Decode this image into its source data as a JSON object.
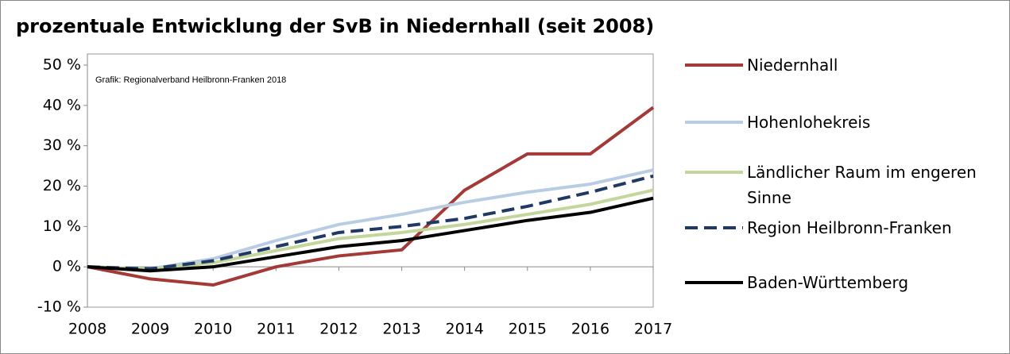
{
  "chart_data": {
    "type": "line",
    "title": "prozentuale Entwicklung der SvB in Niedernhall (seit 2008)",
    "annotation": "Grafik: Regionalverband Heilbronn-Franken 2018",
    "x": [
      2008,
      2009,
      2010,
      2011,
      2012,
      2013,
      2014,
      2015,
      2016,
      2017
    ],
    "xlim": [
      2008,
      2017
    ],
    "xticks": [
      2008,
      2009,
      2010,
      2011,
      2012,
      2013,
      2014,
      2015,
      2016,
      2017
    ],
    "ylim": [
      -10,
      50
    ],
    "yticks": [
      {
        "value": -10,
        "label": "-10 %"
      },
      {
        "value": 0,
        "label": "0 %"
      },
      {
        "value": 10,
        "label": "10 %"
      },
      {
        "value": 20,
        "label": "20 %"
      },
      {
        "value": 30,
        "label": "30 %"
      },
      {
        "value": 40,
        "label": "40 %"
      },
      {
        "value": 50,
        "label": "50 %"
      }
    ],
    "grid": false,
    "legend": "right",
    "series": [
      {
        "name": "Niedernhall",
        "color": "#a33a37",
        "values": [
          0,
          -3,
          -4.5,
          0,
          2.7,
          4.2,
          19,
          28,
          28,
          39.5
        ]
      },
      {
        "name": "Hohenlohekreis",
        "color": "#b8cce4",
        "values": [
          0,
          -0.5,
          2,
          6.5,
          10.5,
          13,
          16,
          18.5,
          20.5,
          24
        ]
      },
      {
        "name": "Ländlicher Raum im engeren Sinne",
        "color": "#c3d69b",
        "values": [
          0,
          -0.5,
          1,
          4,
          7,
          8.5,
          10.5,
          13,
          15.5,
          19
        ]
      },
      {
        "name": "Region Heilbronn-Franken",
        "color": "#1f3864",
        "dashed": true,
        "values": [
          0,
          -0.5,
          1.5,
          5,
          8.5,
          10,
          12,
          15,
          18.5,
          22.5
        ]
      },
      {
        "name": "Baden-Württemberg",
        "color": "#000000",
        "values": [
          0,
          -1,
          0,
          2.5,
          5,
          6.5,
          9,
          11.5,
          13.5,
          17
        ]
      }
    ]
  }
}
